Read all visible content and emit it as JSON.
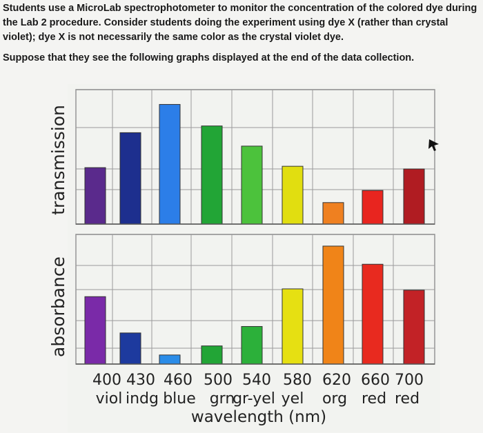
{
  "intro": "Students use a MicroLab spectrophotometer to monitor the concentration of the colored dye during the Lab 2 procedure. Consider students doing the experiment using dye X (rather than crystal violet); dye X is not necessarily the same color as the crystal violet dye.",
  "question": "Suppose that they see the following graphs displayed at the end of the data collection.",
  "chart_data": [
    {
      "type": "bar",
      "ylabel": "transmission",
      "categories": [
        "400",
        "430",
        "460",
        "500",
        "540",
        "580",
        "620",
        "660",
        "700"
      ],
      "category_names": [
        "viol",
        "indg",
        "blue",
        "grn",
        "gr-yel",
        "yel",
        "org",
        "red",
        "red"
      ],
      "values": [
        0.42,
        0.68,
        0.89,
        0.73,
        0.58,
        0.43,
        0.16,
        0.25,
        0.41
      ],
      "ylim": [
        0,
        1
      ],
      "grid": true,
      "colors": [
        "#5a2a8c",
        "#1d2f8e",
        "#2c7ee8",
        "#22a536",
        "#4cc23c",
        "#e1de10",
        "#ef8020",
        "#e8251f",
        "#b01c22"
      ]
    },
    {
      "type": "bar",
      "ylabel": "absorbance",
      "xlabel": "wavelength (nm)",
      "categories": [
        "400",
        "430",
        "460",
        "500",
        "540",
        "580",
        "620",
        "660",
        "700"
      ],
      "category_names": [
        "viol",
        "indg",
        "blue",
        "grn",
        "gr-yel",
        "yel",
        "org",
        "red",
        "red"
      ],
      "values": [
        0.52,
        0.24,
        0.07,
        0.14,
        0.29,
        0.58,
        0.91,
        0.77,
        0.57
      ],
      "ylim": [
        0,
        1
      ],
      "grid": true,
      "colors": [
        "#7a2aa8",
        "#1d3a9e",
        "#2a8ce8",
        "#22a536",
        "#2cb03a",
        "#e6e012",
        "#f08418",
        "#e82a1f",
        "#c22226"
      ]
    }
  ]
}
